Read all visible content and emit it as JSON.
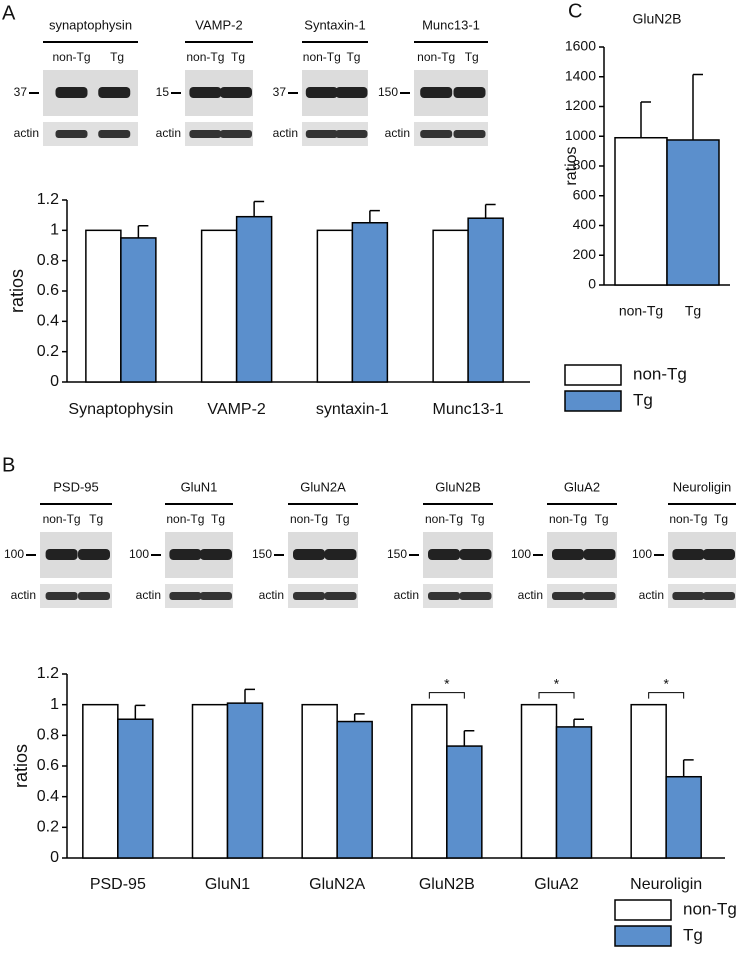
{
  "panels": [
    "A",
    "B",
    "C"
  ],
  "blots": {
    "A": [
      {
        "name": "synaptophysin",
        "lanes": [
          "non-Tg",
          "Tg"
        ],
        "marker": "37",
        "loading": "actin"
      },
      {
        "name": "VAMP-2",
        "lanes": [
          "non-Tg",
          "Tg"
        ],
        "marker": "15",
        "loading": "actin"
      },
      {
        "name": "Syntaxin-1",
        "lanes": [
          "non-Tg",
          "Tg"
        ],
        "marker": "37",
        "loading": "actin"
      },
      {
        "name": "Munc13-1",
        "lanes": [
          "non-Tg",
          "Tg"
        ],
        "marker": "150",
        "loading": "actin"
      }
    ],
    "B": [
      {
        "name": "PSD-95",
        "lanes": [
          "non-Tg",
          "Tg"
        ],
        "marker": "100",
        "loading": "actin"
      },
      {
        "name": "GluN1",
        "lanes": [
          "non-Tg",
          "Tg"
        ],
        "marker": "100",
        "loading": "actin"
      },
      {
        "name": "GluN2A",
        "lanes": [
          "non-Tg",
          "Tg"
        ],
        "marker": "150",
        "loading": "actin"
      },
      {
        "name": "GluN2B",
        "lanes": [
          "non-Tg",
          "Tg"
        ],
        "marker": "150",
        "loading": "actin"
      },
      {
        "name": "GluA2",
        "lanes": [
          "non-Tg",
          "Tg"
        ],
        "marker": "100",
        "loading": "actin"
      },
      {
        "name": "Neuroligin",
        "lanes": [
          "non-Tg",
          "Tg"
        ],
        "marker": "100",
        "loading": "actin"
      }
    ]
  },
  "chart_data": [
    {
      "type": "bar",
      "y_label": "ratios",
      "categories": [
        "Synaptophysin",
        "VAMP-2",
        "syntaxin-1",
        "Munc13-1"
      ],
      "series": [
        {
          "name": "non-Tg",
          "color": "#ffffff",
          "values": [
            1,
            1,
            1,
            1
          ]
        },
        {
          "name": "Tg",
          "color": "#5b8fcc",
          "values": [
            0.95,
            1.09,
            1.05,
            1.08
          ],
          "errors": [
            0.08,
            0.1,
            0.08,
            0.09
          ]
        }
      ],
      "ylim": [
        0,
        1.2
      ],
      "yticks": [
        0,
        0.2,
        0.4,
        0.6,
        0.8,
        1,
        1.2
      ]
    },
    {
      "type": "bar",
      "y_label": "ratios",
      "categories": [
        "PSD-95",
        "GluN1",
        "GluN2A",
        "GluN2B",
        "GluA2",
        "Neuroligin"
      ],
      "series": [
        {
          "name": "non-Tg",
          "color": "#ffffff",
          "values": [
            1,
            1,
            1,
            1,
            1,
            1
          ]
        },
        {
          "name": "Tg",
          "color": "#5b8fcc",
          "values": [
            0.905,
            1.01,
            0.89,
            0.73,
            0.855,
            0.53
          ],
          "errors": [
            0.09,
            0.09,
            0.05,
            0.1,
            0.05,
            0.11
          ]
        }
      ],
      "significance": [
        null,
        null,
        null,
        "*",
        "*",
        "*"
      ],
      "ylim": [
        0,
        1.2
      ],
      "yticks": [
        0,
        0.2,
        0.4,
        0.6,
        0.8,
        1,
        1.2
      ]
    },
    {
      "type": "bar",
      "title": "GluN2B",
      "y_label": "ratios",
      "categories": [
        "non-Tg",
        "Tg"
      ],
      "values": [
        990,
        975
      ],
      "errors": [
        240,
        440
      ],
      "colors": [
        "#ffffff",
        "#5b8fcc"
      ],
      "ylim": [
        0,
        1600
      ],
      "yticks": [
        0,
        200,
        400,
        600,
        800,
        1000,
        1200,
        1400,
        1600
      ]
    }
  ]
}
